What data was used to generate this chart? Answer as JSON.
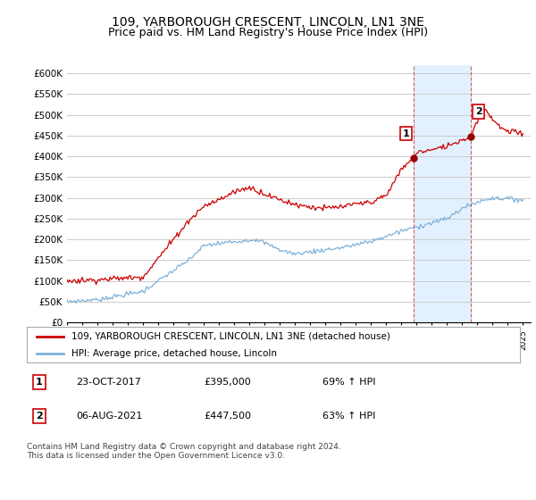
{
  "title": "109, YARBOROUGH CRESCENT, LINCOLN, LN1 3NE",
  "subtitle": "Price paid vs. HM Land Registry's House Price Index (HPI)",
  "title_fontsize": 10,
  "subtitle_fontsize": 9,
  "hpi_color": "#7fb2d8",
  "price_color": "#cc0000",
  "bg_color": "#ffffff",
  "grid_color": "#cccccc",
  "highlight_bg": "#ddeeff",
  "ylim": [
    0,
    620000
  ],
  "yticks": [
    0,
    50000,
    100000,
    150000,
    200000,
    250000,
    300000,
    350000,
    400000,
    450000,
    500000,
    550000,
    600000
  ],
  "ytick_labels": [
    "£0",
    "£50K",
    "£100K",
    "£150K",
    "£200K",
    "£250K",
    "£300K",
    "£350K",
    "£400K",
    "£450K",
    "£500K",
    "£550K",
    "£600K"
  ],
  "legend_label_price": "109, YARBOROUGH CRESCENT, LINCOLN, LN1 3NE (detached house)",
  "legend_label_hpi": "HPI: Average price, detached house, Lincoln",
  "annotation1_label": "1",
  "annotation1_date": "23-OCT-2017",
  "annotation1_price": "£395,000",
  "annotation1_pct": "69% ↑ HPI",
  "annotation2_label": "2",
  "annotation2_date": "06-AUG-2021",
  "annotation2_price": "£447,500",
  "annotation2_pct": "63% ↑ HPI",
  "footer": "Contains HM Land Registry data © Crown copyright and database right 2024.\nThis data is licensed under the Open Government Licence v3.0.",
  "t1_year": 2017.8,
  "t2_year": 2021.58,
  "t1_price": 395000,
  "t2_price": 447500
}
